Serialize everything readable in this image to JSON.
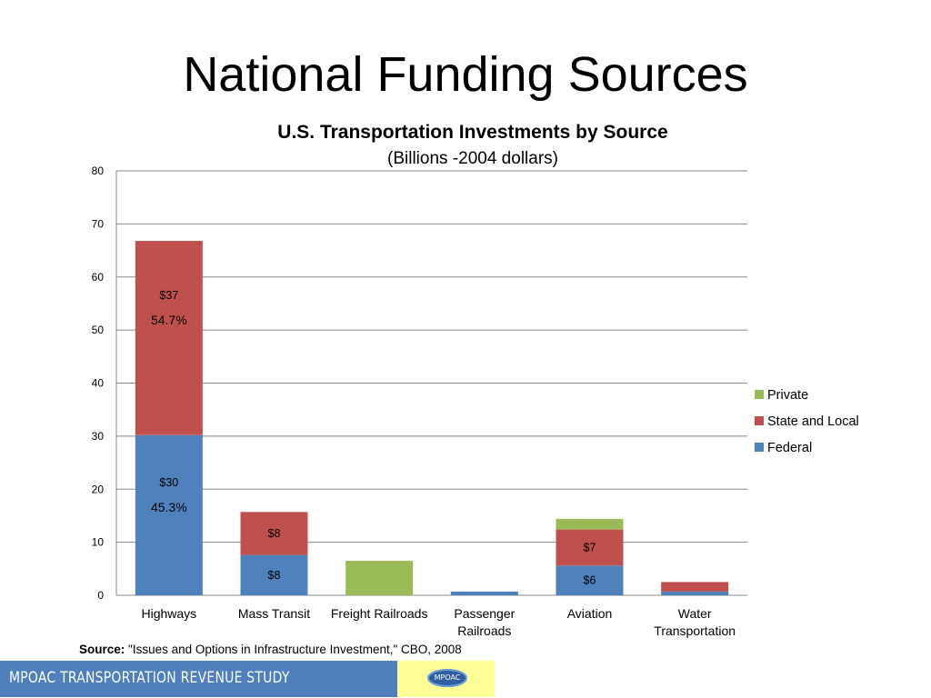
{
  "slide": {
    "title": "National Funding Sources",
    "source_label": "Source:",
    "source_text": "\"Issues and Options in Infrastructure Investment,\" CBO, 2008",
    "footer_text": "MPOAC  TRANSPORTATION REVENUE STUDY",
    "logo_text": "MPOAC"
  },
  "chart_data": {
    "type": "bar",
    "stacked": true,
    "title": "U.S. Transportation Investments by Source",
    "subtitle": "(Billions -2004 dollars)",
    "xlabel": "",
    "ylabel": "",
    "ylim": [
      0,
      80
    ],
    "yticks": [
      0,
      10,
      20,
      30,
      40,
      50,
      60,
      70,
      80
    ],
    "grid": true,
    "legend_position": "right",
    "categories": [
      "Highways",
      "Mass Transit",
      "Freight Railroads",
      "Passenger Railroads",
      "Aviation",
      "Water Transportation"
    ],
    "series": [
      {
        "name": "Federal",
        "color": "#4f81bd",
        "values": [
          30.2,
          7.6,
          0,
          0.7,
          5.6,
          0.7
        ]
      },
      {
        "name": "State and Local",
        "color": "#c0504d",
        "values": [
          36.6,
          8.1,
          0,
          0,
          6.8,
          1.8
        ]
      },
      {
        "name": "Private",
        "color": "#9bbb59",
        "values": [
          0,
          0,
          6.5,
          0,
          2.0,
          0
        ]
      }
    ],
    "legend_order": [
      "Private",
      "State and Local",
      "Federal"
    ],
    "annotations": [
      {
        "category": 0,
        "series": "State and Local",
        "lines": [
          "$37",
          "54.7%"
        ]
      },
      {
        "category": 0,
        "series": "Federal",
        "lines": [
          "$30",
          "45.3%"
        ]
      },
      {
        "category": 1,
        "series": "State and Local",
        "lines": [
          "$8"
        ]
      },
      {
        "category": 1,
        "series": "Federal",
        "lines": [
          "$8"
        ]
      },
      {
        "category": 4,
        "series": "State and Local",
        "lines": [
          "$7"
        ]
      },
      {
        "category": 4,
        "series": "Federal",
        "lines": [
          "$6"
        ]
      }
    ]
  }
}
